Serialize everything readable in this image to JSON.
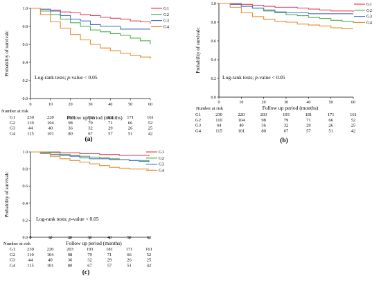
{
  "chart_data": [
    {
      "type": "line",
      "panel": "a",
      "ylabel": "Probability of survivalc",
      "xlabel": "Follow up period (months)",
      "xlim": [
        0,
        60
      ],
      "ylim": [
        0,
        1.0
      ],
      "xticks": [
        0,
        10,
        20,
        30,
        40,
        50,
        60
      ],
      "yticks": [
        "0.0",
        "0.2",
        "0.4",
        "0.6",
        "0.8",
        "1.0"
      ],
      "annotation_prefix": "Log-rank tests; ",
      "annotation_p": "p",
      "annotation_suffix": "-value < 0.05",
      "legend": [
        "G1",
        "G2",
        "G3",
        "G4"
      ],
      "legend_position": "top-right",
      "series": [
        {
          "name": "G1",
          "color": "#e8405b",
          "x": [
            0,
            5,
            10,
            15,
            20,
            25,
            30,
            35,
            40,
            45,
            50,
            55,
            60
          ],
          "y": [
            1.0,
            0.99,
            0.98,
            0.96,
            0.95,
            0.93,
            0.92,
            0.9,
            0.89,
            0.88,
            0.86,
            0.85,
            0.83
          ]
        },
        {
          "name": "G2",
          "color": "#4fb24a",
          "x": [
            0,
            5,
            10,
            15,
            20,
            25,
            30,
            35,
            40,
            45,
            50,
            55,
            60
          ],
          "y": [
            1.0,
            0.97,
            0.93,
            0.88,
            0.84,
            0.8,
            0.76,
            0.74,
            0.72,
            0.7,
            0.67,
            0.64,
            0.6
          ]
        },
        {
          "name": "G3",
          "color": "#4a72c8",
          "x": [
            0,
            5,
            10,
            15,
            20,
            25,
            30,
            35,
            40,
            45,
            50,
            55,
            60
          ],
          "y": [
            1.0,
            0.99,
            0.97,
            0.92,
            0.88,
            0.86,
            0.82,
            0.8,
            0.8,
            0.77,
            0.77,
            0.77,
            0.77
          ]
        },
        {
          "name": "G4",
          "color": "#e88a2e",
          "x": [
            0,
            5,
            10,
            15,
            20,
            25,
            30,
            35,
            40,
            45,
            50,
            55,
            60
          ],
          "y": [
            1.0,
            0.93,
            0.85,
            0.78,
            0.71,
            0.65,
            0.6,
            0.56,
            0.53,
            0.5,
            0.48,
            0.46,
            0.44
          ]
        }
      ],
      "risk_table": {
        "title": "Number at risk",
        "rows": [
          {
            "label": "G1",
            "values": [
              "230",
              "220",
              "203",
              "193",
              "181",
              "171",
              "161"
            ]
          },
          {
            "label": "G2",
            "values": [
              "110",
              "104",
              "98",
              "79",
              "71",
              "66",
              "52"
            ]
          },
          {
            "label": "G3",
            "values": [
              "44",
              "40",
              "36",
              "32",
              "29",
              "26",
              "25"
            ]
          },
          {
            "label": "G4",
            "values": [
              "115",
              "101",
              "80",
              "67",
              "57",
              "51",
              "42"
            ]
          }
        ]
      },
      "caption": "(a)"
    },
    {
      "type": "line",
      "panel": "b",
      "ylabel": "Probability of survivalc",
      "xlabel": "Follow up period (months)",
      "xlim": [
        0,
        60
      ],
      "ylim": [
        0,
        1.0
      ],
      "xticks": [
        0,
        10,
        20,
        30,
        40,
        50,
        60
      ],
      "yticks": [
        "0.0",
        "0.2",
        "0.4",
        "0.6",
        "0.8",
        "1.0"
      ],
      "annotation_prefix": "Log-rank tests; ",
      "annotation_p": "p",
      "annotation_suffix": "-value < 0.05",
      "legend": [
        "G1",
        "G2",
        "G3",
        "G4"
      ],
      "legend_position": "top-right",
      "series": [
        {
          "name": "G1",
          "color": "#e8405b",
          "x": [
            0,
            5,
            10,
            15,
            20,
            25,
            30,
            35,
            40,
            45,
            50,
            55,
            60
          ],
          "y": [
            1.0,
            1.0,
            0.99,
            0.98,
            0.97,
            0.96,
            0.96,
            0.95,
            0.94,
            0.93,
            0.92,
            0.92,
            0.91
          ]
        },
        {
          "name": "G2",
          "color": "#4fb24a",
          "x": [
            0,
            5,
            10,
            15,
            20,
            25,
            30,
            35,
            40,
            45,
            50,
            55,
            60
          ],
          "y": [
            1.0,
            0.99,
            0.97,
            0.95,
            0.92,
            0.9,
            0.88,
            0.87,
            0.85,
            0.84,
            0.82,
            0.81,
            0.79
          ]
        },
        {
          "name": "G3",
          "color": "#4a72c8",
          "x": [
            0,
            5,
            10,
            15,
            20,
            25,
            30,
            35,
            40,
            45,
            50,
            55,
            60
          ],
          "y": [
            1.0,
            0.99,
            0.97,
            0.95,
            0.93,
            0.91,
            0.9,
            0.9,
            0.89,
            0.89,
            0.89,
            0.89,
            0.89
          ]
        },
        {
          "name": "G4",
          "color": "#e88a2e",
          "x": [
            0,
            5,
            10,
            15,
            20,
            25,
            30,
            35,
            40,
            45,
            50,
            55,
            60
          ],
          "y": [
            1.0,
            0.96,
            0.9,
            0.86,
            0.83,
            0.81,
            0.8,
            0.78,
            0.77,
            0.76,
            0.74,
            0.73,
            0.73
          ]
        }
      ],
      "risk_table": {
        "title": "Number at risk",
        "rows": [
          {
            "label": "G1",
            "values": [
              "230",
              "220",
              "203",
              "193",
              "181",
              "171",
              "161"
            ]
          },
          {
            "label": "G2",
            "values": [
              "110",
              "104",
              "98",
              "79",
              "71",
              "66",
              "52"
            ]
          },
          {
            "label": "G3",
            "values": [
              "44",
              "40",
              "36",
              "32",
              "29",
              "26",
              "25"
            ]
          },
          {
            "label": "G4",
            "values": [
              "115",
              "101",
              "80",
              "67",
              "57",
              "51",
              "42"
            ]
          }
        ]
      },
      "caption": "(b)"
    },
    {
      "type": "line",
      "panel": "c",
      "ylabel": "Probability of survivalc",
      "xlabel": "Follow up period (months)",
      "xlim": [
        0,
        60
      ],
      "ylim": [
        0,
        1.0
      ],
      "xticks": [
        0,
        10,
        20,
        30,
        40,
        50,
        60
      ],
      "yticks": [
        "0.0",
        "0.2",
        "0.4",
        "0.6",
        "0.8",
        "1.0"
      ],
      "annotation_prefix": "Log-rank tests; ",
      "annotation_p": "p",
      "annotation_suffix": "-value < 0.05",
      "legend": [
        "G1",
        "G2",
        "G3",
        "G4"
      ],
      "legend_position": "top-right",
      "series": [
        {
          "name": "G1",
          "color": "#e8405b",
          "x": [
            0,
            5,
            10,
            15,
            20,
            25,
            30,
            35,
            40,
            45,
            50,
            55,
            60
          ],
          "y": [
            1.0,
            1.0,
            1.0,
            0.99,
            0.99,
            0.98,
            0.98,
            0.97,
            0.97,
            0.96,
            0.96,
            0.96,
            0.95
          ]
        },
        {
          "name": "G2",
          "color": "#4fb24a",
          "x": [
            0,
            5,
            10,
            15,
            20,
            25,
            30,
            35,
            40,
            45,
            50,
            55,
            60
          ],
          "y": [
            1.0,
            1.0,
            0.99,
            0.97,
            0.96,
            0.95,
            0.94,
            0.93,
            0.92,
            0.91,
            0.9,
            0.9,
            0.89
          ]
        },
        {
          "name": "G3",
          "color": "#4a72c8",
          "x": [
            0,
            5,
            10,
            15,
            20,
            25,
            30,
            35,
            40,
            45,
            50,
            55,
            60
          ],
          "y": [
            1.0,
            0.99,
            0.97,
            0.96,
            0.95,
            0.93,
            0.92,
            0.92,
            0.91,
            0.91,
            0.9,
            0.89,
            0.88
          ]
        },
        {
          "name": "G4",
          "color": "#e88a2e",
          "x": [
            0,
            5,
            10,
            15,
            20,
            25,
            30,
            35,
            40,
            45,
            50,
            55,
            60
          ],
          "y": [
            1.0,
            0.98,
            0.95,
            0.92,
            0.9,
            0.88,
            0.86,
            0.84,
            0.82,
            0.81,
            0.8,
            0.8,
            0.8
          ]
        }
      ],
      "risk_table": {
        "title": "Number at risk",
        "rows": [
          {
            "label": "G1",
            "values": [
              "230",
              "220",
              "203",
              "193",
              "181",
              "171",
              "161"
            ]
          },
          {
            "label": "G2",
            "values": [
              "110",
              "104",
              "98",
              "79",
              "71",
              "66",
              "52"
            ]
          },
          {
            "label": "G3",
            "values": [
              "44",
              "40",
              "36",
              "32",
              "29",
              "26",
              "25"
            ]
          },
          {
            "label": "G4",
            "values": [
              "115",
              "101",
              "80",
              "67",
              "57",
              "51",
              "42"
            ]
          }
        ]
      },
      "caption": "(c)"
    }
  ]
}
